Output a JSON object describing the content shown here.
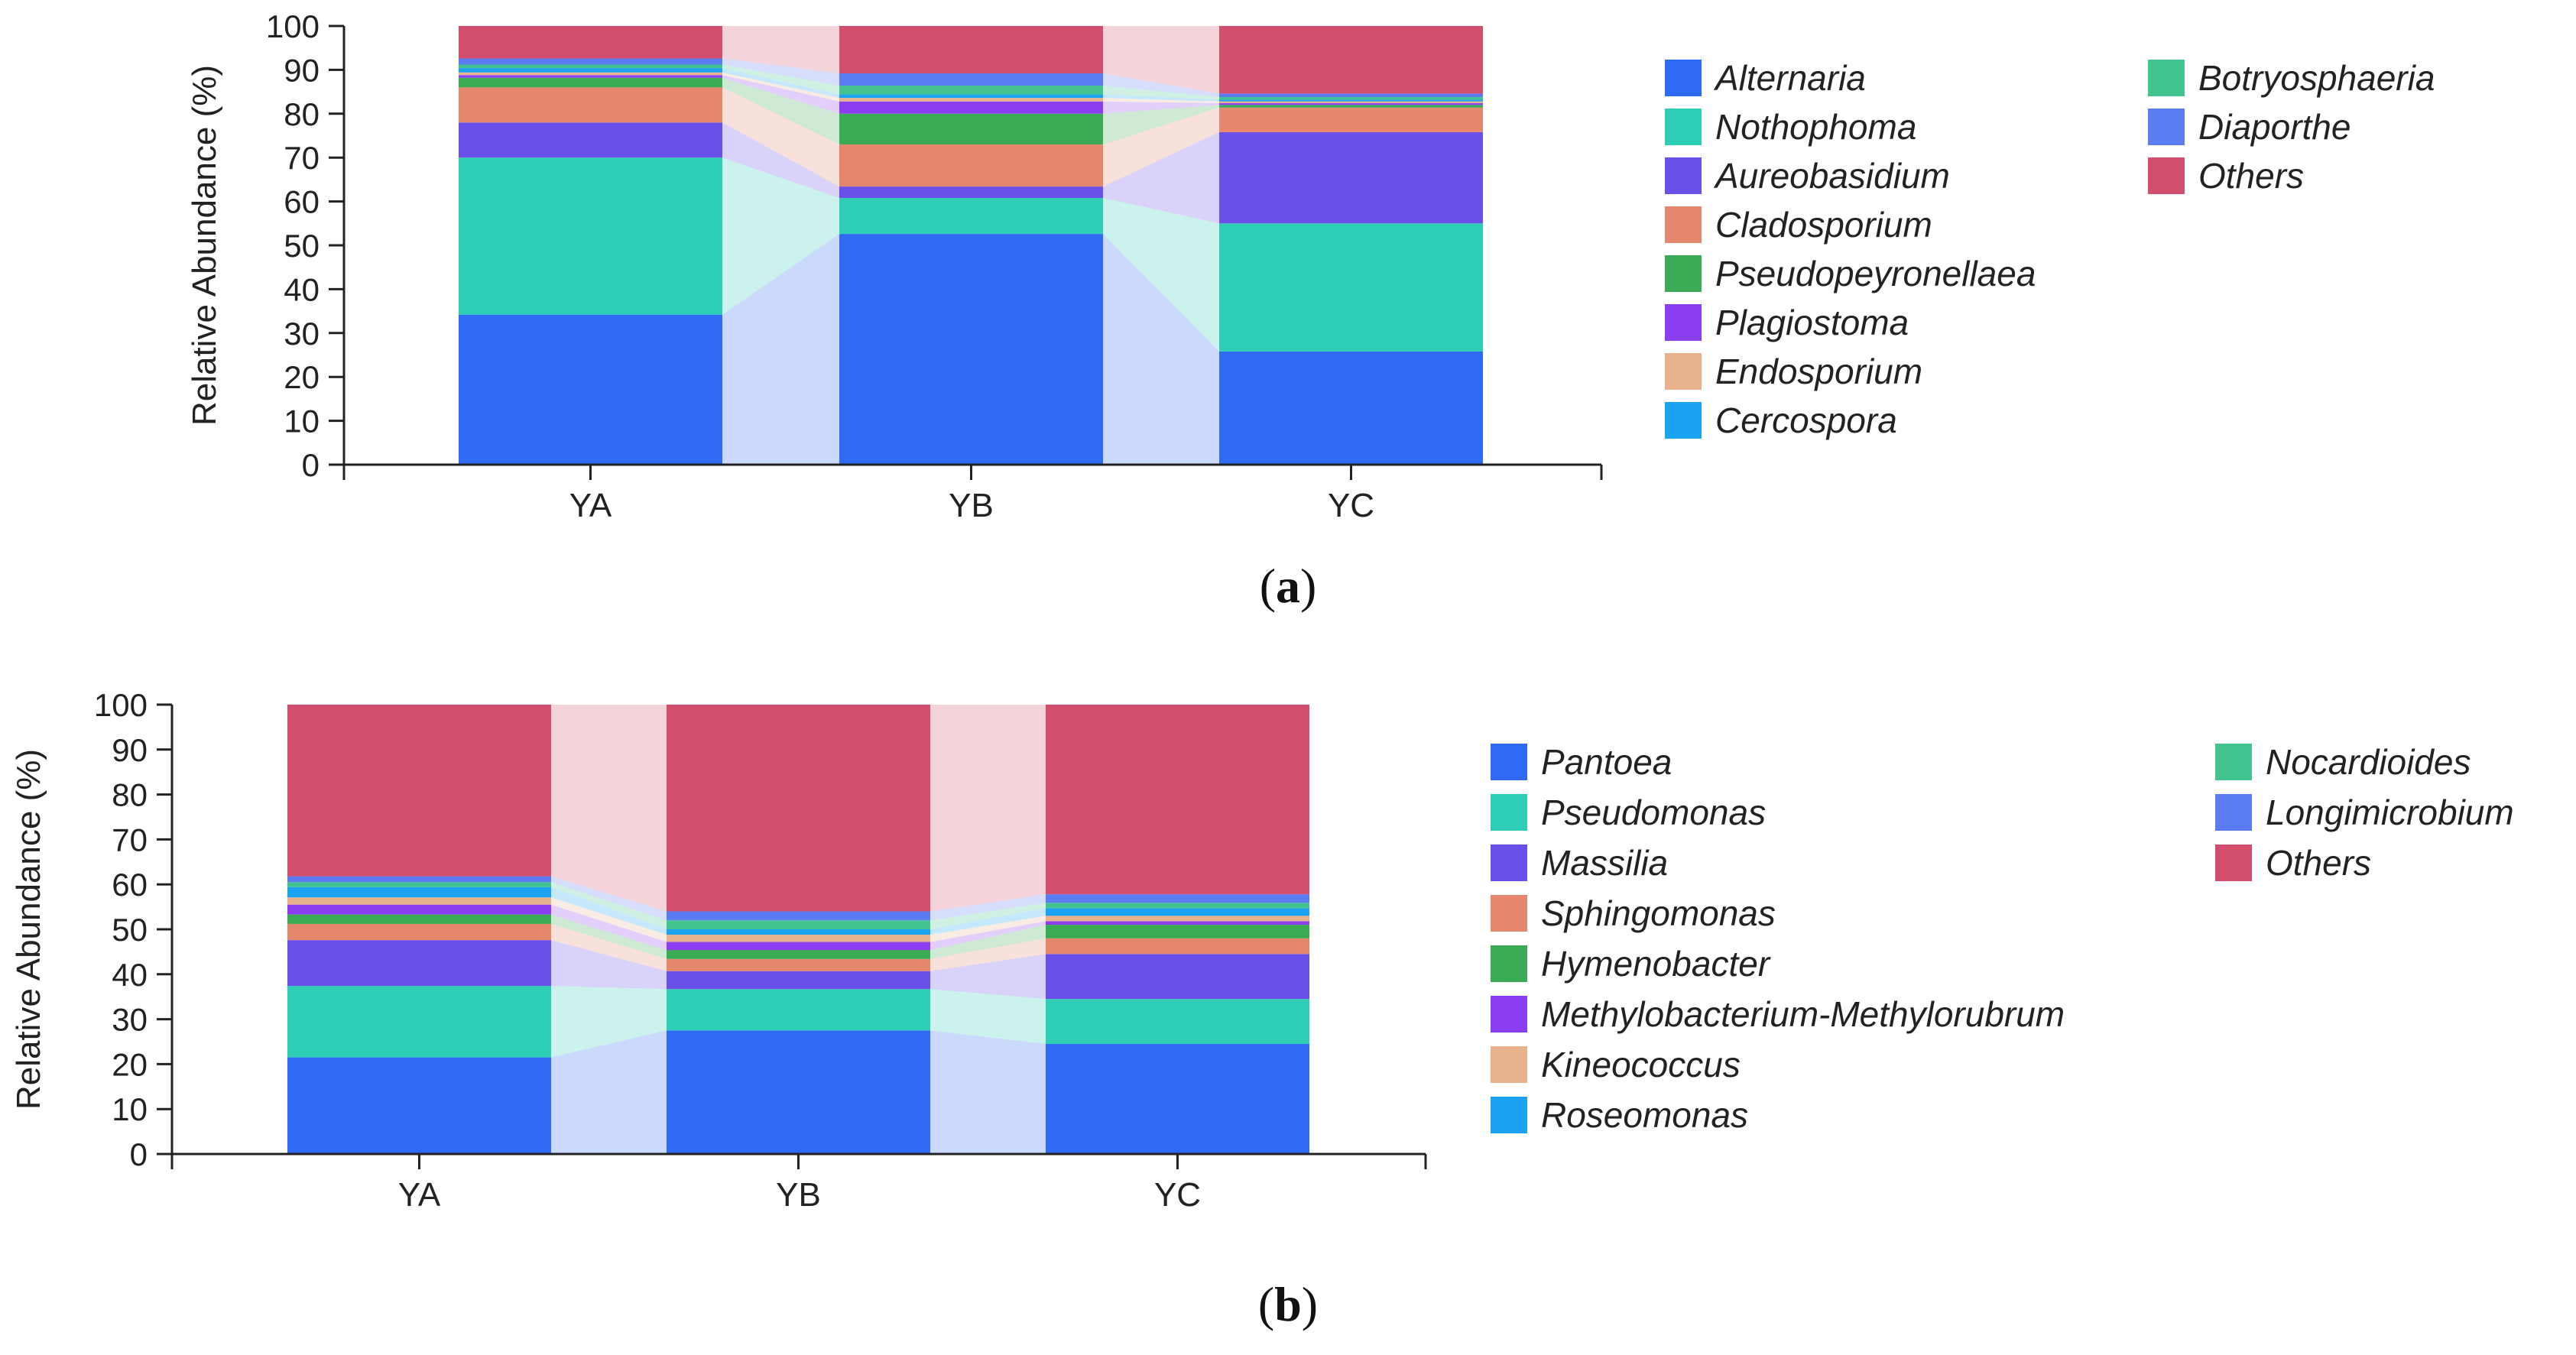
{
  "panels": [
    {
      "caption": "a",
      "chart_data": {
        "type": "bar",
        "stacked": true,
        "title": "",
        "xlabel": "",
        "ylabel": "Relative Abundance (%)",
        "ylim": [
          0,
          100
        ],
        "yticks": [
          0,
          10,
          20,
          30,
          40,
          50,
          60,
          70,
          80,
          90,
          100
        ],
        "categories": [
          "YA",
          "YB",
          "YC"
        ],
        "legend_placement": "right",
        "series": [
          {
            "name": "Alternaria",
            "color": "#2f6af5",
            "values": [
              34.2,
              52.6,
              25.8
            ]
          },
          {
            "name": "Nothophoma",
            "color": "#2ecdb6",
            "values": [
              35.8,
              8.2,
              29.2
            ]
          },
          {
            "name": "Aureobasidium",
            "color": "#6a50e8",
            "values": [
              8.0,
              2.6,
              20.8
            ]
          },
          {
            "name": "Cladosporium",
            "color": "#e5876c",
            "values": [
              8.0,
              9.6,
              5.6
            ]
          },
          {
            "name": "Pseudopeyronellaea",
            "color": "#3aaa55",
            "values": [
              2.2,
              7.0,
              0.6
            ]
          },
          {
            "name": "Plagiostoma",
            "color": "#8a3ef0",
            "values": [
              0.6,
              2.8,
              0.4
            ]
          },
          {
            "name": "Endosporium",
            "color": "#e8b38c",
            "values": [
              0.6,
              0.8,
              0.4
            ]
          },
          {
            "name": "Cercospora",
            "color": "#1ba3f2",
            "values": [
              1.0,
              0.8,
              0.4
            ]
          },
          {
            "name": "Botryosphaeria",
            "color": "#43c38f",
            "values": [
              0.8,
              2.0,
              0.6
            ]
          },
          {
            "name": "Diaporthe",
            "color": "#5b7cf0",
            "values": [
              1.4,
              2.8,
              0.8
            ]
          },
          {
            "name": "Others",
            "color": "#d24e6d",
            "values": [
              7.4,
              10.8,
              15.4
            ]
          }
        ]
      }
    },
    {
      "caption": "b",
      "chart_data": {
        "type": "bar",
        "stacked": true,
        "title": "",
        "xlabel": "",
        "ylabel": "Relative Abundance (%)",
        "ylim": [
          0,
          100
        ],
        "yticks": [
          0,
          10,
          20,
          30,
          40,
          50,
          60,
          70,
          80,
          90,
          100
        ],
        "categories": [
          "YA",
          "YB",
          "YC"
        ],
        "legend_placement": "right",
        "series": [
          {
            "name": "Pantoea",
            "color": "#2f6af5",
            "values": [
              21.5,
              27.5,
              24.5
            ]
          },
          {
            "name": "Pseudomonas",
            "color": "#2ecdb6",
            "values": [
              15.9,
              9.2,
              10.0
            ]
          },
          {
            "name": "Massilia",
            "color": "#6a50e8",
            "values": [
              10.2,
              4.0,
              10.0
            ]
          },
          {
            "name": "Sphingomonas",
            "color": "#e5876c",
            "values": [
              3.6,
              2.7,
              3.5
            ]
          },
          {
            "name": "Hymenobacter",
            "color": "#3aaa55",
            "values": [
              2.1,
              2.0,
              3.0
            ]
          },
          {
            "name": "Methylobacterium-Methylorubrum",
            "color": "#8a3ef0",
            "values": [
              2.2,
              1.8,
              0.8
            ]
          },
          {
            "name": "Kineococcus",
            "color": "#e8b38c",
            "values": [
              1.6,
              1.6,
              1.2
            ]
          },
          {
            "name": "Roseomonas",
            "color": "#1ba3f2",
            "values": [
              2.3,
              1.2,
              1.7
            ]
          },
          {
            "name": "Nocardioides",
            "color": "#43c38f",
            "values": [
              1.1,
              2.0,
              1.2
            ]
          },
          {
            "name": "Longimicrobium",
            "color": "#5b7cf0",
            "values": [
              1.3,
              2.0,
              1.9
            ]
          },
          {
            "name": "Others",
            "color": "#d24e6d",
            "values": [
              38.2,
              46.0,
              42.2
            ]
          }
        ]
      }
    }
  ]
}
